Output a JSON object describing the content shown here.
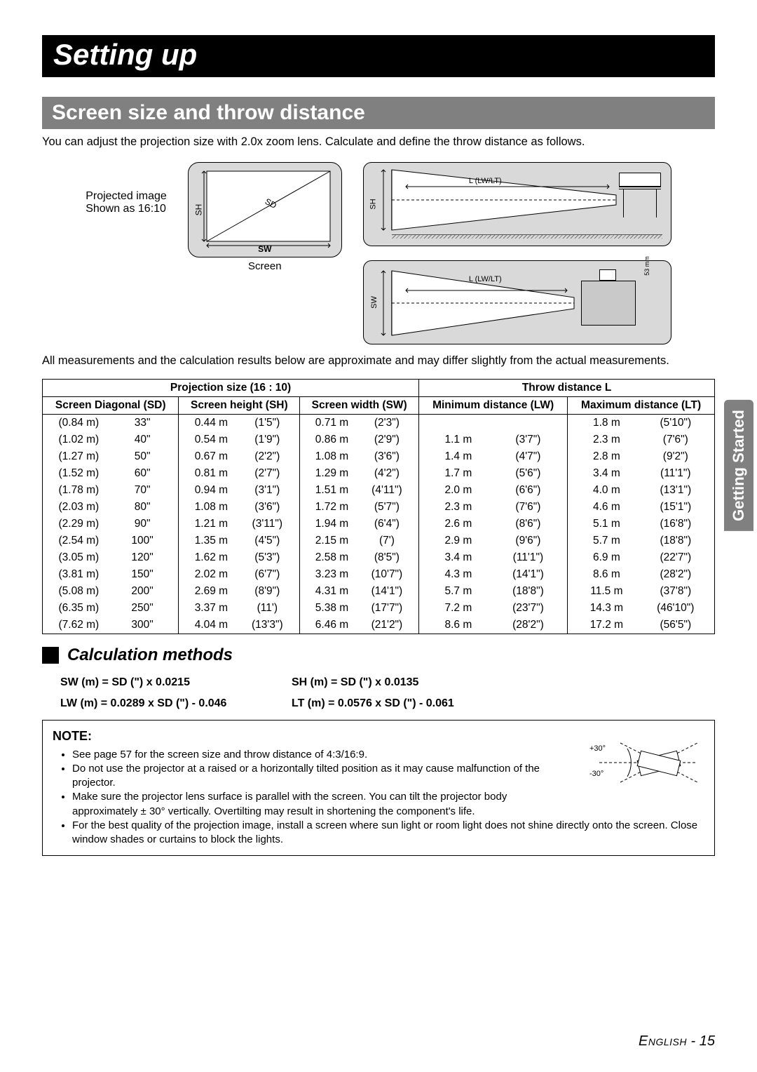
{
  "page": {
    "title": "Setting up",
    "section": "Screen size and throw distance",
    "intro": "You can adjust the projection size with 2.0x zoom lens. Calculate and define the throw distance as follows.",
    "projected_label_1": "Projected image",
    "projected_label_2": "Shown as 16:10",
    "screen_label": "Screen",
    "sh_label": "SH",
    "sw_label": "SW",
    "sd_label": "SD",
    "l_label": "L (LW/LT)",
    "mm53": "53 mm",
    "meas_note": "All measurements and the calculation results below are approximate and may differ slightly from the actual measurements.",
    "side_tab": "Getting Started",
    "footer_lang": "English",
    "footer_page": " - 15"
  },
  "table": {
    "header_proj": "Projection size (16 : 10)",
    "header_throw": "Throw distance L",
    "col_sd": "Screen Diagonal (SD)",
    "col_sh": "Screen height (SH)",
    "col_sw": "Screen width (SW)",
    "col_lw": "Minimum distance (LW)",
    "col_lt": "Maximum distance (LT)",
    "rows": [
      {
        "sd_m": "(0.84 m)",
        "sd_in": "33\"",
        "sh_m": "0.44 m",
        "sh_ft": "(1'5\")",
        "sw_m": "0.71 m",
        "sw_ft": "(2'3\")",
        "lw_m": "",
        "lw_ft": "",
        "lt_m": "1.8 m",
        "lt_ft": "(5'10\")"
      },
      {
        "sd_m": "(1.02 m)",
        "sd_in": "40\"",
        "sh_m": "0.54 m",
        "sh_ft": "(1'9\")",
        "sw_m": "0.86 m",
        "sw_ft": "(2'9\")",
        "lw_m": "1.1 m",
        "lw_ft": "(3'7\")",
        "lt_m": "2.3 m",
        "lt_ft": "(7'6\")"
      },
      {
        "sd_m": "(1.27 m)",
        "sd_in": "50\"",
        "sh_m": "0.67 m",
        "sh_ft": "(2'2\")",
        "sw_m": "1.08 m",
        "sw_ft": "(3'6\")",
        "lw_m": "1.4 m",
        "lw_ft": "(4'7\")",
        "lt_m": "2.8 m",
        "lt_ft": "(9'2\")"
      },
      {
        "sd_m": "(1.52 m)",
        "sd_in": "60\"",
        "sh_m": "0.81 m",
        "sh_ft": "(2'7\")",
        "sw_m": "1.29 m",
        "sw_ft": "(4'2\")",
        "lw_m": "1.7 m",
        "lw_ft": "(5'6\")",
        "lt_m": "3.4 m",
        "lt_ft": "(11'1\")"
      },
      {
        "sd_m": "(1.78 m)",
        "sd_in": "70\"",
        "sh_m": "0.94 m",
        "sh_ft": "(3'1\")",
        "sw_m": "1.51 m",
        "sw_ft": "(4'11\")",
        "lw_m": "2.0 m",
        "lw_ft": "(6'6\")",
        "lt_m": "4.0 m",
        "lt_ft": "(13'1\")"
      },
      {
        "sd_m": "(2.03 m)",
        "sd_in": "80\"",
        "sh_m": "1.08 m",
        "sh_ft": "(3'6\")",
        "sw_m": "1.72 m",
        "sw_ft": "(5'7\")",
        "lw_m": "2.3 m",
        "lw_ft": "(7'6\")",
        "lt_m": "4.6 m",
        "lt_ft": "(15'1\")"
      },
      {
        "sd_m": "(2.29 m)",
        "sd_in": "90\"",
        "sh_m": "1.21 m",
        "sh_ft": "(3'11\")",
        "sw_m": "1.94 m",
        "sw_ft": "(6'4\")",
        "lw_m": "2.6 m",
        "lw_ft": "(8'6\")",
        "lt_m": "5.1 m",
        "lt_ft": "(16'8\")"
      },
      {
        "sd_m": "(2.54 m)",
        "sd_in": "100\"",
        "sh_m": "1.35 m",
        "sh_ft": "(4'5\")",
        "sw_m": "2.15 m",
        "sw_ft": "(7')",
        "lw_m": "2.9 m",
        "lw_ft": "(9'6\")",
        "lt_m": "5.7 m",
        "lt_ft": "(18'8\")"
      },
      {
        "sd_m": "(3.05 m)",
        "sd_in": "120\"",
        "sh_m": "1.62 m",
        "sh_ft": "(5'3\")",
        "sw_m": "2.58 m",
        "sw_ft": "(8'5\")",
        "lw_m": "3.4 m",
        "lw_ft": "(11'1\")",
        "lt_m": "6.9 m",
        "lt_ft": "(22'7\")"
      },
      {
        "sd_m": "(3.81 m)",
        "sd_in": "150\"",
        "sh_m": "2.02 m",
        "sh_ft": "(6'7\")",
        "sw_m": "3.23 m",
        "sw_ft": "(10'7\")",
        "lw_m": "4.3 m",
        "lw_ft": "(14'1\")",
        "lt_m": "8.6 m",
        "lt_ft": "(28'2\")"
      },
      {
        "sd_m": "(5.08 m)",
        "sd_in": "200\"",
        "sh_m": "2.69 m",
        "sh_ft": "(8'9\")",
        "sw_m": "4.31 m",
        "sw_ft": "(14'1\")",
        "lw_m": "5.7 m",
        "lw_ft": "(18'8\")",
        "lt_m": "11.5 m",
        "lt_ft": "(37'8\")"
      },
      {
        "sd_m": "(6.35 m)",
        "sd_in": "250\"",
        "sh_m": "3.37 m",
        "sh_ft": "(11')",
        "sw_m": "5.38 m",
        "sw_ft": "(17'7\")",
        "lw_m": "7.2 m",
        "lw_ft": "(23'7\")",
        "lt_m": "14.3 m",
        "lt_ft": "(46'10\")"
      },
      {
        "sd_m": "(7.62 m)",
        "sd_in": "300\"",
        "sh_m": "4.04 m",
        "sh_ft": "(13'3\")",
        "sw_m": "6.46 m",
        "sw_ft": "(21'2\")",
        "lw_m": "8.6 m",
        "lw_ft": "(28'2\")",
        "lt_m": "17.2 m",
        "lt_ft": "(56'5\")"
      }
    ]
  },
  "calc": {
    "heading": "Calculation methods",
    "sw": "SW (m) = SD (\") x 0.0215",
    "sh": "SH (m) = SD (\") x 0.0135",
    "lw": "LW (m) = 0.0289 x SD (\") - 0.046",
    "lt": "LT (m) = 0.0576 x SD (\") - 0.061"
  },
  "note": {
    "title": "NOTE:",
    "items": [
      "See page 57 for the screen size and throw distance of 4:3/16:9.",
      "Do not use the projector at a raised or a horizontally tilted position as it may cause malfunction of the projector.",
      "Make sure the projector lens surface is parallel with the screen. You can tilt the projector body approximately ± 30° vertically. Overtilting may result in shortening the component's life.",
      "For the best quality of the projection image, install a screen where sun light or room light does not shine directly onto the screen. Close window shades or curtains to block the lights."
    ],
    "angle_pos": "+30°",
    "angle_neg": "-30°"
  },
  "colors": {
    "black": "#000000",
    "grey_banner": "#808080",
    "diagram_bg": "#d9d9d9"
  }
}
